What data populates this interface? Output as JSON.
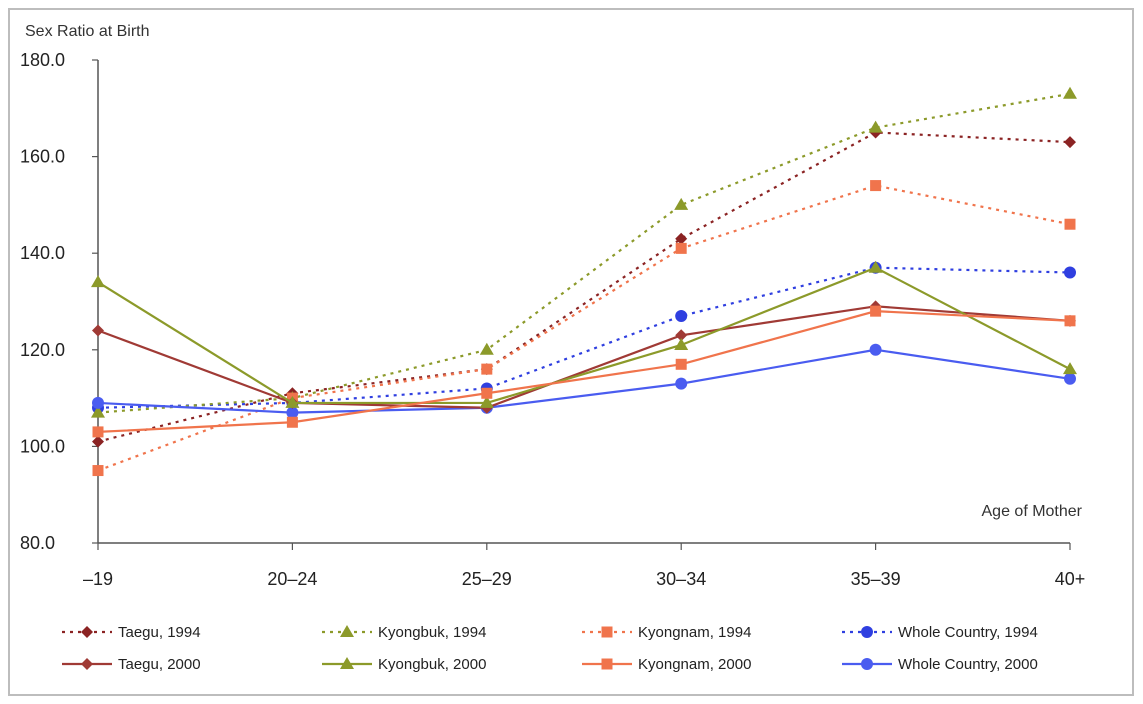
{
  "chart_data": {
    "type": "line",
    "title": "",
    "ylabel": "Sex Ratio at Birth",
    "xlabel": "Age of Mother",
    "categories": [
      "–19",
      "20–24",
      "25–29",
      "30–34",
      "35–39",
      "40+"
    ],
    "yticks": [
      "80.0",
      "100.0",
      "120.0",
      "140.0",
      "160.0",
      "180.0"
    ],
    "ylim": [
      80,
      180
    ],
    "grid": false,
    "legend_position": "bottom",
    "series": [
      {
        "name": "Taegu, 1994",
        "values": [
          101,
          111,
          116,
          143,
          165,
          163
        ],
        "color": "#8B2323",
        "dashed": true,
        "marker": "diamond"
      },
      {
        "name": "Kyongbuk, 1994",
        "values": [
          107,
          110,
          120,
          150,
          166,
          173
        ],
        "color": "#8C9A2A",
        "dashed": true,
        "marker": "triangle"
      },
      {
        "name": "Kyongnam, 1994",
        "values": [
          95,
          110,
          116,
          141,
          154,
          146
        ],
        "color": "#F0744C",
        "dashed": true,
        "marker": "square"
      },
      {
        "name": "Whole Country, 1994",
        "values": [
          108,
          109,
          112,
          127,
          137,
          136
        ],
        "color": "#2F3FE0",
        "dashed": true,
        "marker": "circle"
      },
      {
        "name": "Taegu, 2000",
        "values": [
          124,
          109,
          108,
          123,
          129,
          126
        ],
        "color": "#A03A35",
        "dashed": false,
        "marker": "diamond"
      },
      {
        "name": "Kyongbuk, 2000",
        "values": [
          134,
          109,
          109,
          121,
          137,
          116
        ],
        "color": "#8C9A2A",
        "dashed": false,
        "marker": "triangle"
      },
      {
        "name": "Kyongnam, 2000",
        "values": [
          103,
          105,
          111,
          117,
          128,
          126
        ],
        "color": "#F0744C",
        "dashed": false,
        "marker": "square"
      },
      {
        "name": "Whole Country, 2000",
        "values": [
          109,
          107,
          108,
          113,
          120,
          114
        ],
        "color": "#4A5CF0",
        "dashed": false,
        "marker": "circle"
      }
    ]
  }
}
